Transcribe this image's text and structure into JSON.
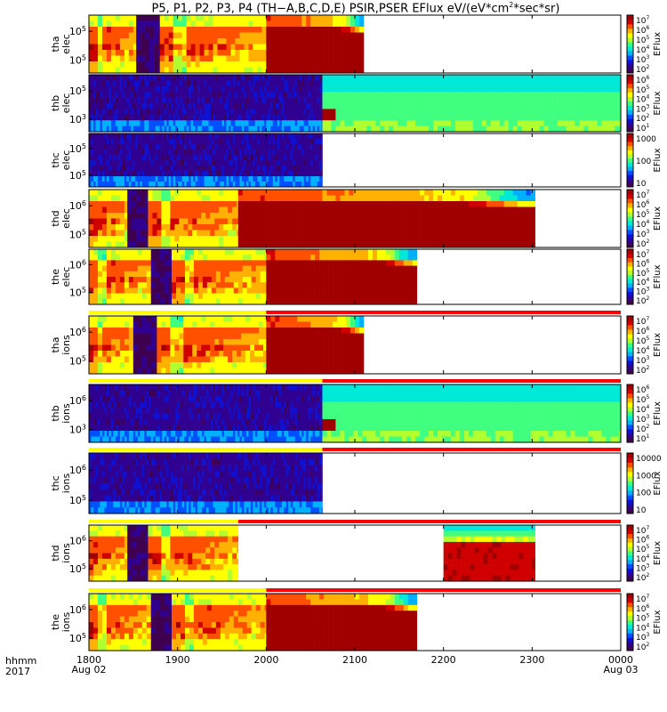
{
  "title": {
    "main": "P5, P1, P2, P3, P4 (TH−A,B,C,D,E) PSIR,PSER EFlux eV/(eV*cm",
    "sup": "2",
    "tail": "*sec*sr)"
  },
  "time_axis": {
    "label": "hhmm",
    "year": "2017",
    "ticks": [
      {
        "t": 0,
        "label": "1800",
        "sub": "Aug 02"
      },
      {
        "t": 60,
        "label": "1900",
        "sub": ""
      },
      {
        "t": 120,
        "label": "2000",
        "sub": ""
      },
      {
        "t": 180,
        "label": "2100",
        "sub": ""
      },
      {
        "t": 240,
        "label": "2200",
        "sub": ""
      },
      {
        "t": 300,
        "label": "2300",
        "sub": ""
      },
      {
        "t": 360,
        "label": "0000",
        "sub": "Aug 03"
      }
    ]
  },
  "colors": {
    "nodata": "#ffffff",
    "mode_fast": "#ffff00",
    "mode_slow": "#ff0000",
    "colormap": [
      "#400050",
      "#300090",
      "#1010d0",
      "#0050ff",
      "#00b0ff",
      "#00e8d8",
      "#40ff80",
      "#b0ff30",
      "#ffff00",
      "#ffb000",
      "#ff5000",
      "#d00000",
      "#a00000"
    ]
  },
  "chart_data": {
    "type": "heatmap",
    "x_units": "minutes after 1800 UT Aug 02 2017",
    "panels": [
      {
        "id": "tha-elec",
        "probe": "tha",
        "species": "elec",
        "ylabel_1": "tha",
        "ylabel_2": "elec",
        "ytick_labels": [
          {
            "base": "10",
            "exp": "5"
          },
          {
            "base": "10",
            "exp": "5"
          }
        ],
        "cbar_label": "EFlux",
        "cbar_ticks": [
          {
            "base": "10",
            "exp": "7"
          },
          {
            "base": "10",
            "exp": "6"
          },
          {
            "base": "10",
            "exp": "5"
          },
          {
            "base": "10",
            "exp": "4"
          },
          {
            "base": "10",
            "exp": "3"
          },
          {
            "base": "10",
            "exp": "2"
          }
        ],
        "mode_bar": null,
        "segments": [
          {
            "t0": 0,
            "t1": 32,
            "kind": "plasmasheet"
          },
          {
            "t0": 32,
            "t1": 48,
            "kind": "gap"
          },
          {
            "t0": 48,
            "t1": 120,
            "kind": "plasmasheet"
          },
          {
            "t0": 120,
            "t1": 186,
            "kind": "hot"
          }
        ]
      },
      {
        "id": "thb-elec",
        "probe": "thb",
        "species": "elec",
        "ylabel_1": "thb",
        "ylabel_2": "elec",
        "ytick_labels": [
          {
            "base": "10",
            "exp": "5"
          },
          {
            "base": "10",
            "exp": "3"
          }
        ],
        "cbar_label": "EFlux",
        "cbar_ticks": [
          {
            "base": "10",
            "exp": "6"
          },
          {
            "base": "10",
            "exp": "5"
          },
          {
            "base": "10",
            "exp": "4"
          },
          {
            "base": "10",
            "exp": "3"
          },
          {
            "base": "10",
            "exp": "2"
          },
          {
            "base": "10",
            "exp": "1"
          }
        ],
        "mode_bar": null,
        "segments": [
          {
            "t0": 0,
            "t1": 158,
            "kind": "noise"
          },
          {
            "t0": 158,
            "t1": 360,
            "kind": "cyan"
          }
        ]
      },
      {
        "id": "thc-elec",
        "probe": "thc",
        "species": "elec",
        "ylabel_1": "thc",
        "ylabel_2": "elec",
        "ytick_labels": [
          {
            "base": "10",
            "exp": "5"
          },
          {
            "base": "10",
            "exp": "5"
          }
        ],
        "cbar_label": "EFlux",
        "cbar_ticks": [
          {
            "base": "1000",
            "exp": ""
          },
          {
            "base": "100",
            "exp": ""
          },
          {
            "base": "10",
            "exp": ""
          }
        ],
        "mode_bar": null,
        "segments": [
          {
            "t0": 0,
            "t1": 158,
            "kind": "noise"
          }
        ]
      },
      {
        "id": "thd-elec",
        "probe": "thd",
        "species": "elec",
        "ylabel_1": "thd",
        "ylabel_2": "elec",
        "ytick_labels": [
          {
            "base": "10",
            "exp": "6"
          },
          {
            "base": "10",
            "exp": "5"
          }
        ],
        "cbar_label": "EFlux",
        "cbar_ticks": [
          {
            "base": "10",
            "exp": "7"
          },
          {
            "base": "10",
            "exp": "6"
          },
          {
            "base": "10",
            "exp": "5"
          },
          {
            "base": "10",
            "exp": "4"
          },
          {
            "base": "10",
            "exp": "3"
          },
          {
            "base": "10",
            "exp": "2"
          }
        ],
        "mode_bar": null,
        "segments": [
          {
            "t0": 0,
            "t1": 26,
            "kind": "plasmasheet"
          },
          {
            "t0": 26,
            "t1": 40,
            "kind": "gap"
          },
          {
            "t0": 40,
            "t1": 101,
            "kind": "plasmasheet"
          },
          {
            "t0": 101,
            "t1": 302,
            "kind": "hot"
          }
        ]
      },
      {
        "id": "the-elec",
        "probe": "the",
        "species": "elec",
        "ylabel_1": "the",
        "ylabel_2": "elec",
        "ytick_labels": [
          {
            "base": "10",
            "exp": "6"
          },
          {
            "base": "10",
            "exp": "5"
          }
        ],
        "cbar_label": "EFlux",
        "cbar_ticks": [
          {
            "base": "10",
            "exp": "7"
          },
          {
            "base": "10",
            "exp": "6"
          },
          {
            "base": "10",
            "exp": "5"
          },
          {
            "base": "10",
            "exp": "4"
          },
          {
            "base": "10",
            "exp": "3"
          },
          {
            "base": "10",
            "exp": "2"
          }
        ],
        "mode_bar": null,
        "segments": [
          {
            "t0": 0,
            "t1": 42,
            "kind": "plasmasheet"
          },
          {
            "t0": 42,
            "t1": 56,
            "kind": "gap"
          },
          {
            "t0": 56,
            "t1": 120,
            "kind": "plasmasheet"
          },
          {
            "t0": 120,
            "t1": 222,
            "kind": "hot"
          }
        ]
      },
      {
        "id": "tha-ions",
        "probe": "tha",
        "species": "ions",
        "ylabel_1": "tha",
        "ylabel_2": "ions",
        "ytick_labels": [
          {
            "base": "10",
            "exp": "6"
          },
          {
            "base": "10",
            "exp": "5"
          }
        ],
        "cbar_label": "EFlux",
        "cbar_ticks": [
          {
            "base": "10",
            "exp": "7"
          },
          {
            "base": "10",
            "exp": "6"
          },
          {
            "base": "10",
            "exp": "5"
          },
          {
            "base": "10",
            "exp": "4"
          },
          {
            "base": "10",
            "exp": "3"
          },
          {
            "base": "10",
            "exp": "2"
          }
        ],
        "mode_bar": {
          "fast_end": 120
        },
        "segments": [
          {
            "t0": 0,
            "t1": 30,
            "kind": "plasmasheet"
          },
          {
            "t0": 30,
            "t1": 46,
            "kind": "gap"
          },
          {
            "t0": 46,
            "t1": 120,
            "kind": "plasmasheet"
          },
          {
            "t0": 120,
            "t1": 186,
            "kind": "hot"
          }
        ]
      },
      {
        "id": "thb-ions",
        "probe": "thb",
        "species": "ions",
        "ylabel_1": "thb",
        "ylabel_2": "ions",
        "ytick_labels": [
          {
            "base": "10",
            "exp": "6"
          },
          {
            "base": "10",
            "exp": "3"
          }
        ],
        "cbar_label": "EFlux",
        "cbar_ticks": [
          {
            "base": "10",
            "exp": "6"
          },
          {
            "base": "10",
            "exp": "5"
          },
          {
            "base": "10",
            "exp": "4"
          },
          {
            "base": "10",
            "exp": "3"
          },
          {
            "base": "10",
            "exp": "2"
          },
          {
            "base": "10",
            "exp": "1"
          }
        ],
        "mode_bar": {
          "fast_end": 158
        },
        "segments": [
          {
            "t0": 0,
            "t1": 158,
            "kind": "noise"
          },
          {
            "t0": 158,
            "t1": 360,
            "kind": "cyan"
          }
        ]
      },
      {
        "id": "thc-ions",
        "probe": "thc",
        "species": "ions",
        "ylabel_1": "thc",
        "ylabel_2": "ions",
        "ytick_labels": [
          {
            "base": "10",
            "exp": "6"
          },
          {
            "base": "10",
            "exp": "5"
          }
        ],
        "cbar_label": "EFlux",
        "cbar_ticks": [
          {
            "base": "10000",
            "exp": ""
          },
          {
            "base": "1000",
            "exp": ""
          },
          {
            "base": "100",
            "exp": ""
          },
          {
            "base": "10",
            "exp": ""
          }
        ],
        "mode_bar": {
          "fast_end": 158
        },
        "segments": [
          {
            "t0": 0,
            "t1": 158,
            "kind": "noise"
          }
        ]
      },
      {
        "id": "thd-ions",
        "probe": "thd",
        "species": "ions",
        "ylabel_1": "thd",
        "ylabel_2": "ions",
        "ytick_labels": [
          {
            "base": "10",
            "exp": "6"
          },
          {
            "base": "10",
            "exp": "5"
          }
        ],
        "cbar_label": "EFlux",
        "cbar_ticks": [
          {
            "base": "10",
            "exp": "7"
          },
          {
            "base": "10",
            "exp": "6"
          },
          {
            "base": "10",
            "exp": "5"
          },
          {
            "base": "10",
            "exp": "4"
          },
          {
            "base": "10",
            "exp": "3"
          },
          {
            "base": "10",
            "exp": "2"
          }
        ],
        "mode_bar": {
          "fast_end": 101
        },
        "segments": [
          {
            "t0": 0,
            "t1": 26,
            "kind": "plasmasheet"
          },
          {
            "t0": 26,
            "t1": 40,
            "kind": "gap"
          },
          {
            "t0": 40,
            "t1": 101,
            "kind": "plasmasheet"
          },
          {
            "t0": 240,
            "t1": 302,
            "kind": "hot-upper"
          }
        ]
      },
      {
        "id": "the-ions",
        "probe": "the",
        "species": "ions",
        "ylabel_1": "the",
        "ylabel_2": "ions",
        "ytick_labels": [
          {
            "base": "10",
            "exp": "6"
          },
          {
            "base": "10",
            "exp": "5"
          }
        ],
        "cbar_label": "EFlux",
        "cbar_ticks": [
          {
            "base": "10",
            "exp": "7"
          },
          {
            "base": "10",
            "exp": "6"
          },
          {
            "base": "10",
            "exp": "5"
          },
          {
            "base": "10",
            "exp": "4"
          },
          {
            "base": "10",
            "exp": "3"
          },
          {
            "base": "10",
            "exp": "2"
          }
        ],
        "mode_bar": {
          "fast_end": 120
        },
        "segments": [
          {
            "t0": 0,
            "t1": 42,
            "kind": "plasmasheet"
          },
          {
            "t0": 42,
            "t1": 56,
            "kind": "gap"
          },
          {
            "t0": 56,
            "t1": 120,
            "kind": "plasmasheet"
          },
          {
            "t0": 120,
            "t1": 222,
            "kind": "hot"
          }
        ]
      }
    ]
  }
}
